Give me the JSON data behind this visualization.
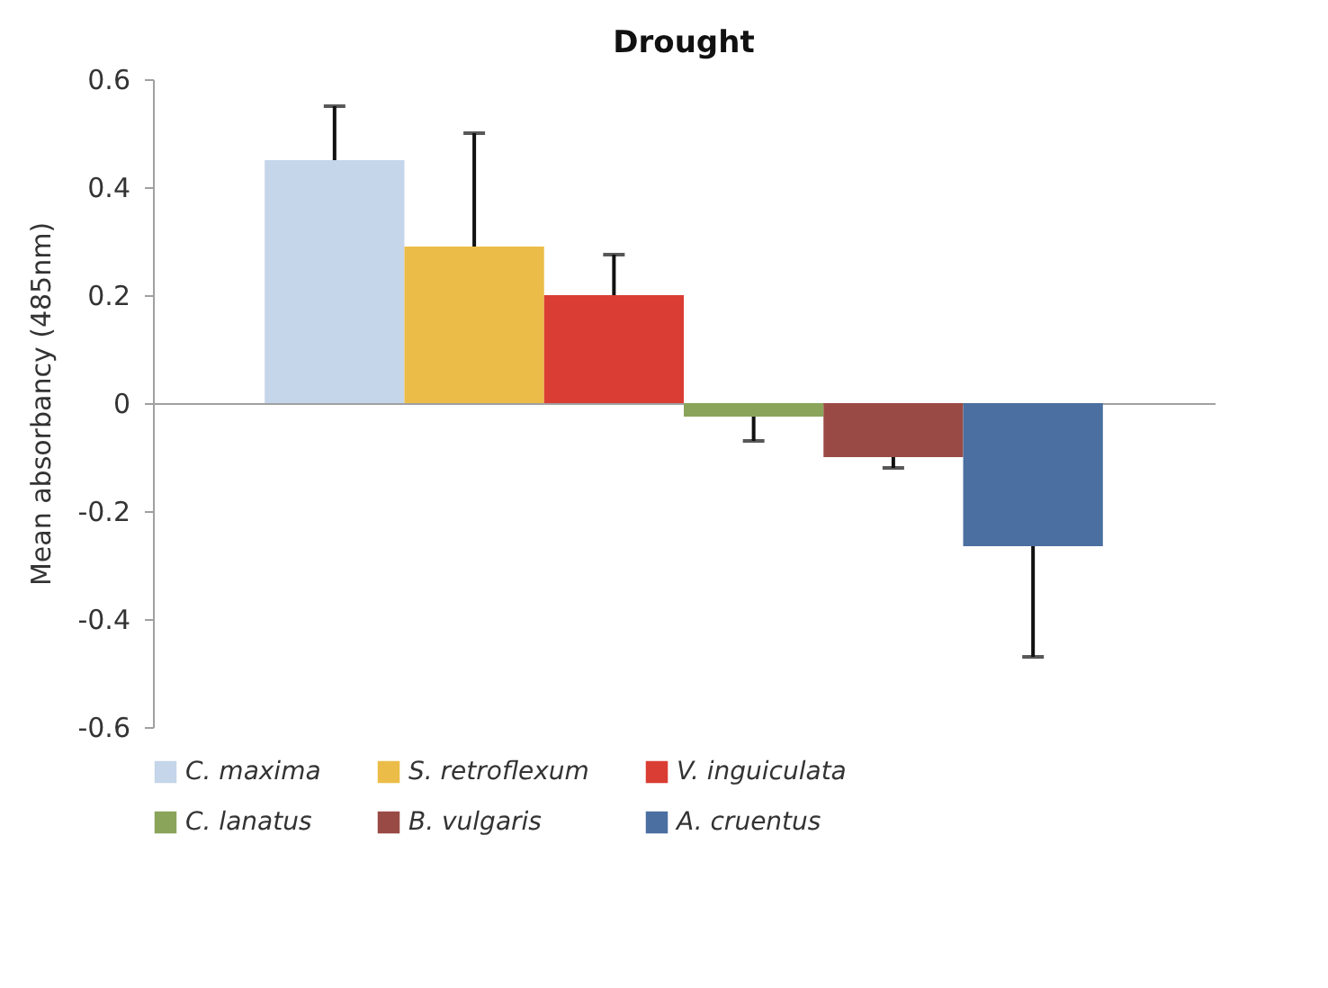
{
  "chart_data": {
    "type": "bar",
    "title": "Drought",
    "ylabel": "Mean absorbancy (485nm)",
    "categories": [
      null
    ],
    "series": [
      {
        "name": "C. maxima",
        "color": "#c5d5ea",
        "values": [
          0.45
        ],
        "errors": [
          [
            0.45,
            0.55
          ]
        ]
      },
      {
        "name": "S. retroflexum",
        "color": "#ebbd48",
        "values": [
          0.29
        ],
        "errors": [
          [
            0.29,
            0.5
          ]
        ]
      },
      {
        "name": "V. inguiculata",
        "color": "#da3d33",
        "values": [
          0.2
        ],
        "errors": [
          [
            0.2,
            0.275
          ]
        ]
      },
      {
        "name": "C. lanatus",
        "color": "#8aa45a",
        "values": [
          -0.025
        ],
        "errors": [
          [
            -0.07,
            -0.025
          ]
        ]
      },
      {
        "name": "B. vulgaris",
        "color": "#9a4a45",
        "values": [
          -0.1
        ],
        "errors": [
          [
            -0.12,
            -0.1
          ]
        ]
      },
      {
        "name": "A. cruentus",
        "color": "#4a6fa0",
        "values": [
          -0.265
        ],
        "errors": [
          [
            -0.47,
            -0.265
          ]
        ]
      }
    ],
    "ylim": [
      -0.6,
      0.6
    ],
    "yticks": [
      -0.6,
      -0.4,
      -0.2,
      0,
      0.2,
      0.4,
      0.6
    ],
    "legend": "bottom"
  }
}
